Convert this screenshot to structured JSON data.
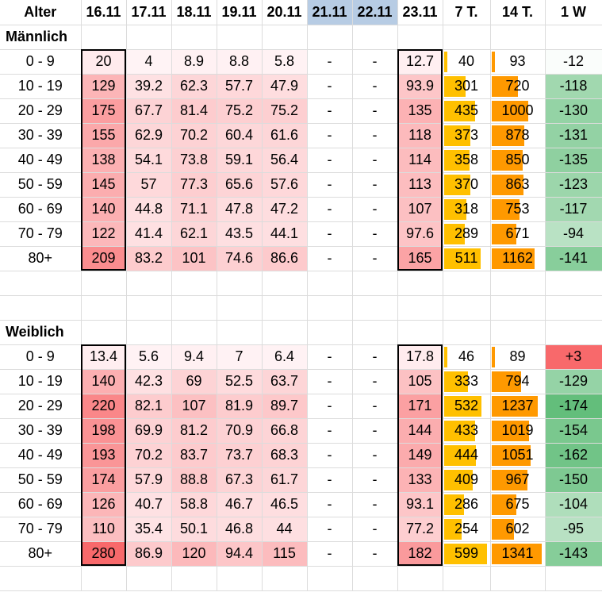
{
  "headers": [
    "Alter",
    "16.11",
    "17.11",
    "18.11",
    "19.11",
    "20.11",
    "21.11",
    "22.11",
    "23.11",
    "7 T.",
    "14 T.",
    "1 W"
  ],
  "sections": [
    {
      "title": "Männlich",
      "rows": [
        {
          "age": "0 - 9",
          "values": [
            "20",
            "4",
            "8.9",
            "8.8",
            "5.8",
            "-",
            "-",
            "12.7"
          ],
          "t7": "40",
          "t14": "93",
          "w1": "-12"
        },
        {
          "age": "10 - 19",
          "values": [
            "129",
            "39.2",
            "62.3",
            "57.7",
            "47.9",
            "-",
            "-",
            "93.9"
          ],
          "t7": "301",
          "t14": "720",
          "w1": "-118"
        },
        {
          "age": "20 - 29",
          "values": [
            "175",
            "67.7",
            "81.4",
            "75.2",
            "75.2",
            "-",
            "-",
            "135"
          ],
          "t7": "435",
          "t14": "1000",
          "w1": "-130"
        },
        {
          "age": "30 - 39",
          "values": [
            "155",
            "62.9",
            "70.2",
            "60.4",
            "61.6",
            "-",
            "-",
            "118"
          ],
          "t7": "373",
          "t14": "878",
          "w1": "-131"
        },
        {
          "age": "40 - 49",
          "values": [
            "138",
            "54.1",
            "73.8",
            "59.1",
            "56.4",
            "-",
            "-",
            "114"
          ],
          "t7": "358",
          "t14": "850",
          "w1": "-135"
        },
        {
          "age": "50 - 59",
          "values": [
            "145",
            "57",
            "77.3",
            "65.6",
            "57.6",
            "-",
            "-",
            "113"
          ],
          "t7": "370",
          "t14": "863",
          "w1": "-123"
        },
        {
          "age": "60 - 69",
          "values": [
            "140",
            "44.8",
            "71.1",
            "47.8",
            "47.2",
            "-",
            "-",
            "107"
          ],
          "t7": "318",
          "t14": "753",
          "w1": "-117"
        },
        {
          "age": "70 - 79",
          "values": [
            "122",
            "41.4",
            "62.1",
            "43.5",
            "44.1",
            "-",
            "-",
            "97.6"
          ],
          "t7": "289",
          "t14": "671",
          "w1": "-94"
        },
        {
          "age": "80+",
          "values": [
            "209",
            "83.2",
            "101",
            "74.6",
            "86.6",
            "-",
            "-",
            "165"
          ],
          "t7": "511",
          "t14": "1162",
          "w1": "-141"
        }
      ]
    },
    {
      "title": "Weiblich",
      "rows": [
        {
          "age": "0 - 9",
          "values": [
            "13.4",
            "5.6",
            "9.4",
            "7",
            "6.4",
            "-",
            "-",
            "17.8"
          ],
          "t7": "46",
          "t14": "89",
          "w1": "+3"
        },
        {
          "age": "10 - 19",
          "values": [
            "140",
            "42.3",
            "69",
            "52.5",
            "63.7",
            "-",
            "-",
            "105"
          ],
          "t7": "333",
          "t14": "794",
          "w1": "-129"
        },
        {
          "age": "20 - 29",
          "values": [
            "220",
            "82.1",
            "107",
            "81.9",
            "89.7",
            "-",
            "-",
            "171"
          ],
          "t7": "532",
          "t14": "1237",
          "w1": "-174"
        },
        {
          "age": "30 - 39",
          "values": [
            "198",
            "69.9",
            "81.2",
            "70.9",
            "66.8",
            "-",
            "-",
            "144"
          ],
          "t7": "433",
          "t14": "1019",
          "w1": "-154"
        },
        {
          "age": "40 - 49",
          "values": [
            "193",
            "70.2",
            "83.7",
            "73.7",
            "68.3",
            "-",
            "-",
            "149"
          ],
          "t7": "444",
          "t14": "1051",
          "w1": "-162"
        },
        {
          "age": "50 - 59",
          "values": [
            "174",
            "57.9",
            "88.8",
            "67.3",
            "61.7",
            "-",
            "-",
            "133"
          ],
          "t7": "409",
          "t14": "967",
          "w1": "-150"
        },
        {
          "age": "60 - 69",
          "values": [
            "126",
            "40.7",
            "58.8",
            "46.7",
            "46.5",
            "-",
            "-",
            "93.1"
          ],
          "t7": "286",
          "t14": "675",
          "w1": "-104"
        },
        {
          "age": "70 - 79",
          "values": [
            "110",
            "35.4",
            "50.1",
            "46.8",
            "44",
            "-",
            "-",
            "77.2"
          ],
          "t7": "254",
          "t14": "602",
          "w1": "-95"
        },
        {
          "age": "80+",
          "values": [
            "280",
            "86.9",
            "120",
            "94.4",
            "115",
            "-",
            "-",
            "182"
          ],
          "t7": "599",
          "t14": "1341",
          "w1": "-143"
        }
      ]
    }
  ],
  "colors": {
    "heat_low": "#fff5f7",
    "heat_high": "#f8696b",
    "weekend_header": "#b7cce4",
    "bar_7t": "#ffc000",
    "bar_14t": "#ff9900",
    "w1_green": "#63be7b",
    "w1_red": "#f8696b"
  }
}
